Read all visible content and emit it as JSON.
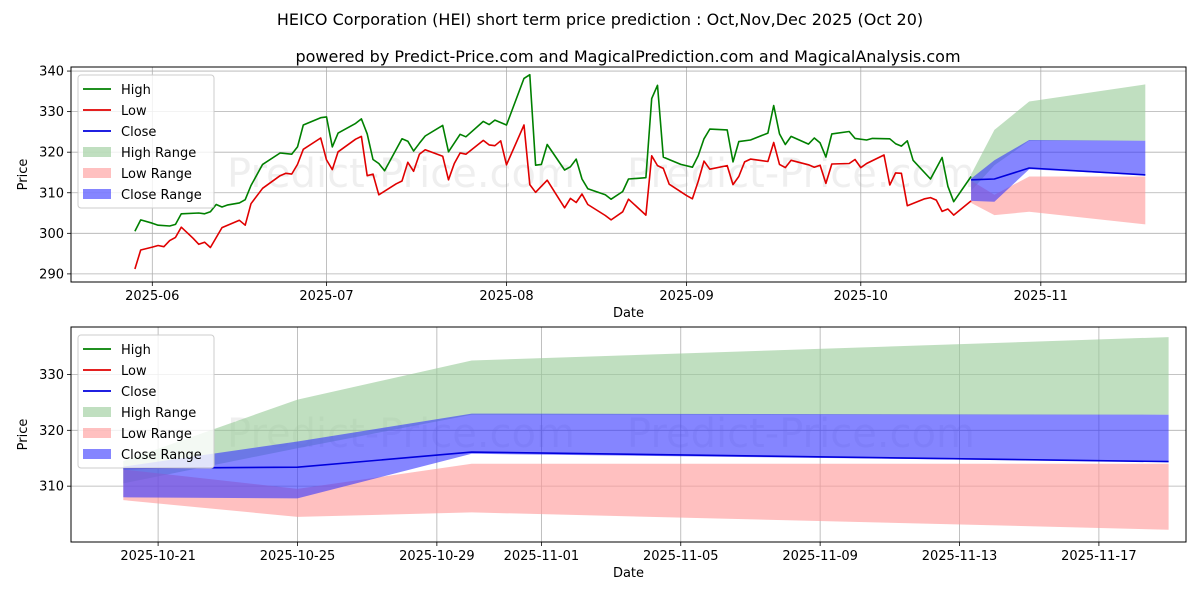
{
  "title": "HEICO Corporation (HEI) short term price prediction : Oct,Nov,Dec 2025 (Oct 20)",
  "subtitle": "powered by Predict-Price.com and MagicalPrediction.com and MagicalAnalysis.com",
  "watermark": "Predict-Price.com",
  "colors": {
    "high": "#008000",
    "low": "#e00000",
    "close": "#0000dd",
    "high_range": "#99cc99",
    "low_range": "#ff9999",
    "close_range": "#3333ff"
  },
  "chart_data": [
    {
      "type": "line",
      "id": "overview",
      "xlabel": "Date",
      "ylabel": "Price",
      "xlim": [
        -14,
        178
      ],
      "ylim": [
        288,
        341
      ],
      "x_ticks": [
        {
          "x": 0,
          "label": "2025-06"
        },
        {
          "x": 30,
          "label": "2025-07"
        },
        {
          "x": 61,
          "label": "2025-08"
        },
        {
          "x": 92,
          "label": "2025-09"
        },
        {
          "x": 122,
          "label": "2025-10"
        },
        {
          "x": 153,
          "label": "2025-11"
        }
      ],
      "y_ticks": [
        290,
        300,
        310,
        320,
        330,
        340
      ],
      "grid": true,
      "legend": [
        "High",
        "Low",
        "Close",
        "High Range",
        "Low Range",
        "Close Range"
      ],
      "legend_position": "top-left",
      "series": [
        {
          "name": "High",
          "points": [
            [
              -3,
              300.5
            ],
            [
              -2,
              303.3
            ],
            [
              0,
              302.5
            ],
            [
              1,
              302.0
            ],
            [
              3,
              301.8
            ],
            [
              4,
              302.2
            ],
            [
              5,
              304.8
            ],
            [
              8,
              305.0
            ],
            [
              9,
              304.8
            ],
            [
              10,
              305.3
            ],
            [
              11,
              307.1
            ],
            [
              12,
              306.5
            ],
            [
              13,
              307.0
            ],
            [
              15,
              307.5
            ],
            [
              16,
              308.3
            ],
            [
              17,
              311.8
            ],
            [
              19,
              317.0
            ],
            [
              22,
              319.8
            ],
            [
              24,
              319.5
            ],
            [
              25,
              321.3
            ],
            [
              26,
              326.7
            ],
            [
              29,
              328.5
            ],
            [
              30,
              328.7
            ],
            [
              31,
              321.3
            ],
            [
              32,
              324.7
            ],
            [
              35,
              327.1
            ],
            [
              36,
              328.2
            ],
            [
              37,
              324.5
            ],
            [
              38,
              318.2
            ],
            [
              39,
              317.2
            ],
            [
              40,
              315.4
            ],
            [
              43,
              323.3
            ],
            [
              44,
              322.7
            ],
            [
              45,
              320.3
            ],
            [
              46,
              322.2
            ],
            [
              47,
              324.0
            ],
            [
              50,
              326.6
            ],
            [
              51,
              320.1
            ],
            [
              53,
              324.4
            ],
            [
              54,
              323.8
            ],
            [
              57,
              327.6
            ],
            [
              58,
              326.8
            ],
            [
              59,
              327.9
            ],
            [
              61,
              326.7
            ],
            [
              64,
              338.2
            ],
            [
              65,
              339.1
            ],
            [
              66,
              316.8
            ],
            [
              67,
              317.0
            ],
            [
              68,
              321.9
            ],
            [
              71,
              315.6
            ],
            [
              72,
              316.4
            ],
            [
              73,
              318.3
            ],
            [
              74,
              313.4
            ],
            [
              75,
              311.0
            ],
            [
              78,
              309.5
            ],
            [
              79,
              308.4
            ],
            [
              81,
              310.3
            ],
            [
              82,
              313.4
            ],
            [
              85,
              313.7
            ],
            [
              86,
              333.2
            ],
            [
              87,
              336.5
            ],
            [
              88,
              318.8
            ],
            [
              91,
              317.0
            ],
            [
              93,
              316.3
            ],
            [
              94,
              319.1
            ],
            [
              95,
              323.3
            ],
            [
              96,
              325.7
            ],
            [
              99,
              325.5
            ],
            [
              100,
              317.6
            ],
            [
              101,
              322.6
            ],
            [
              103,
              323.0
            ],
            [
              106,
              324.7
            ],
            [
              107,
              331.5
            ],
            [
              108,
              324.5
            ],
            [
              109,
              321.9
            ],
            [
              110,
              323.9
            ],
            [
              113,
              322.0
            ],
            [
              114,
              323.5
            ],
            [
              115,
              322.3
            ],
            [
              116,
              318.8
            ],
            [
              117,
              324.5
            ],
            [
              120,
              325.1
            ],
            [
              121,
              323.4
            ],
            [
              123,
              323.0
            ],
            [
              124,
              323.4
            ],
            [
              127,
              323.3
            ],
            [
              128,
              322.1
            ],
            [
              129,
              321.5
            ],
            [
              130,
              322.8
            ],
            [
              131,
              318.0
            ],
            [
              134,
              313.4
            ],
            [
              136,
              318.7
            ],
            [
              137,
              311.6
            ],
            [
              138,
              307.8
            ],
            [
              141,
              314.0
            ]
          ]
        },
        {
          "name": "Low",
          "points": [
            [
              -3,
              291.2
            ],
            [
              -2,
              295.9
            ],
            [
              0,
              296.6
            ],
            [
              1,
              297.0
            ],
            [
              2,
              296.7
            ],
            [
              3,
              298.2
            ],
            [
              4,
              299.0
            ],
            [
              5,
              301.5
            ],
            [
              7,
              298.8
            ],
            [
              8,
              297.3
            ],
            [
              9,
              297.8
            ],
            [
              10,
              296.5
            ],
            [
              12,
              301.4
            ],
            [
              15,
              303.2
            ],
            [
              16,
              302.0
            ],
            [
              17,
              307.3
            ],
            [
              19,
              311.1
            ],
            [
              22,
              314.2
            ],
            [
              23,
              314.8
            ],
            [
              24,
              314.6
            ],
            [
              25,
              317.0
            ],
            [
              26,
              320.7
            ],
            [
              29,
              323.5
            ],
            [
              30,
              318.1
            ],
            [
              31,
              315.7
            ],
            [
              32,
              320.1
            ],
            [
              35,
              323.2
            ],
            [
              36,
              323.9
            ],
            [
              37,
              314.2
            ],
            [
              38,
              314.6
            ],
            [
              39,
              309.5
            ],
            [
              42,
              312.2
            ],
            [
              43,
              312.9
            ],
            [
              44,
              317.5
            ],
            [
              45,
              315.3
            ],
            [
              46,
              319.5
            ],
            [
              47,
              320.6
            ],
            [
              50,
              319.0
            ],
            [
              51,
              313.2
            ],
            [
              52,
              317.2
            ],
            [
              53,
              319.8
            ],
            [
              54,
              319.5
            ],
            [
              57,
              322.9
            ],
            [
              58,
              321.8
            ],
            [
              59,
              321.6
            ],
            [
              60,
              322.8
            ],
            [
              61,
              316.9
            ],
            [
              64,
              326.7
            ],
            [
              65,
              312.0
            ],
            [
              66,
              310.1
            ],
            [
              68,
              313.1
            ],
            [
              71,
              306.3
            ],
            [
              72,
              308.6
            ],
            [
              73,
              307.6
            ],
            [
              74,
              309.7
            ],
            [
              75,
              307.1
            ],
            [
              78,
              304.4
            ],
            [
              79,
              303.3
            ],
            [
              81,
              305.3
            ],
            [
              82,
              308.4
            ],
            [
              85,
              304.5
            ],
            [
              86,
              319.1
            ],
            [
              87,
              316.7
            ],
            [
              88,
              316.0
            ],
            [
              89,
              312.1
            ],
            [
              92,
              309.3
            ],
            [
              93,
              308.5
            ],
            [
              94,
              312.8
            ],
            [
              95,
              317.8
            ],
            [
              96,
              315.8
            ],
            [
              99,
              316.7
            ],
            [
              100,
              312.0
            ],
            [
              101,
              314.0
            ],
            [
              102,
              317.6
            ],
            [
              103,
              318.3
            ],
            [
              106,
              317.7
            ],
            [
              107,
              322.4
            ],
            [
              108,
              317.0
            ],
            [
              109,
              316.2
            ],
            [
              110,
              318.0
            ],
            [
              113,
              316.9
            ],
            [
              114,
              316.3
            ],
            [
              115,
              316.8
            ],
            [
              116,
              312.3
            ],
            [
              117,
              317.1
            ],
            [
              120,
              317.2
            ],
            [
              121,
              318.2
            ],
            [
              122,
              316.2
            ],
            [
              123,
              317.2
            ],
            [
              126,
              319.3
            ],
            [
              127,
              311.9
            ],
            [
              128,
              314.9
            ],
            [
              129,
              314.8
            ],
            [
              130,
              306.8
            ],
            [
              133,
              308.5
            ],
            [
              134,
              308.8
            ],
            [
              135,
              308.2
            ],
            [
              136,
              305.4
            ],
            [
              137,
              306.0
            ],
            [
              138,
              304.5
            ],
            [
              141,
              308.0
            ]
          ]
        },
        {
          "name": "Close",
          "points": [
            [
              141,
              313.2
            ],
            [
              145,
              313.4
            ],
            [
              151,
              316.1
            ],
            [
              171,
              314.4
            ]
          ]
        }
      ],
      "bands": [
        {
          "name": "High Range",
          "x": [
            141,
            145,
            151,
            171
          ],
          "upper": [
            314.5,
            325.5,
            332.5,
            336.7
          ],
          "lower": [
            310.5,
            316.8,
            322.8,
            322.8
          ]
        },
        {
          "name": "Low Range",
          "x": [
            141,
            145,
            151,
            171
          ],
          "upper": [
            313.0,
            309.5,
            314.0,
            314.0
          ],
          "lower": [
            307.5,
            304.5,
            305.3,
            302.2
          ]
        },
        {
          "name": "Close Range",
          "x": [
            141,
            145,
            151,
            171
          ],
          "upper": [
            313.5,
            318.0,
            323.0,
            322.8
          ],
          "lower": [
            308.0,
            307.8,
            315.8,
            314.3
          ]
        }
      ]
    },
    {
      "type": "line",
      "id": "forecast",
      "xlabel": "Date",
      "ylabel": "Price",
      "xlim": [
        -1.5,
        30.5
      ],
      "ylim": [
        300,
        338.5
      ],
      "x_ticks": [
        {
          "x": 1,
          "label": "2025-10-21"
        },
        {
          "x": 5,
          "label": "2025-10-25"
        },
        {
          "x": 9,
          "label": "2025-10-29"
        },
        {
          "x": 12,
          "label": "2025-11-01"
        },
        {
          "x": 16,
          "label": "2025-11-05"
        },
        {
          "x": 20,
          "label": "2025-11-09"
        },
        {
          "x": 24,
          "label": "2025-11-13"
        },
        {
          "x": 28,
          "label": "2025-11-17"
        }
      ],
      "y_ticks": [
        310,
        320,
        330
      ],
      "grid": true,
      "legend": [
        "High",
        "Low",
        "Close",
        "High Range",
        "Low Range",
        "Close Range"
      ],
      "legend_position": "top-left",
      "series": [
        {
          "name": "Close",
          "points": [
            [
              0,
              313.2
            ],
            [
              5,
              313.4
            ],
            [
              10,
              316.1
            ],
            [
              30,
              314.4
            ]
          ]
        }
      ],
      "bands": [
        {
          "name": "High Range",
          "x": [
            0,
            5,
            10,
            30
          ],
          "upper": [
            314.5,
            325.5,
            332.5,
            336.7
          ],
          "lower": [
            310.5,
            316.8,
            322.8,
            322.8
          ]
        },
        {
          "name": "Low Range",
          "x": [
            0,
            5,
            10,
            30
          ],
          "upper": [
            313.0,
            309.5,
            314.0,
            314.0
          ],
          "lower": [
            307.5,
            304.5,
            305.3,
            302.2
          ]
        },
        {
          "name": "Close Range",
          "x": [
            0,
            5,
            10,
            30
          ],
          "upper": [
            313.5,
            318.0,
            323.0,
            322.8
          ],
          "lower": [
            308.0,
            307.8,
            315.8,
            314.3
          ]
        }
      ]
    }
  ]
}
